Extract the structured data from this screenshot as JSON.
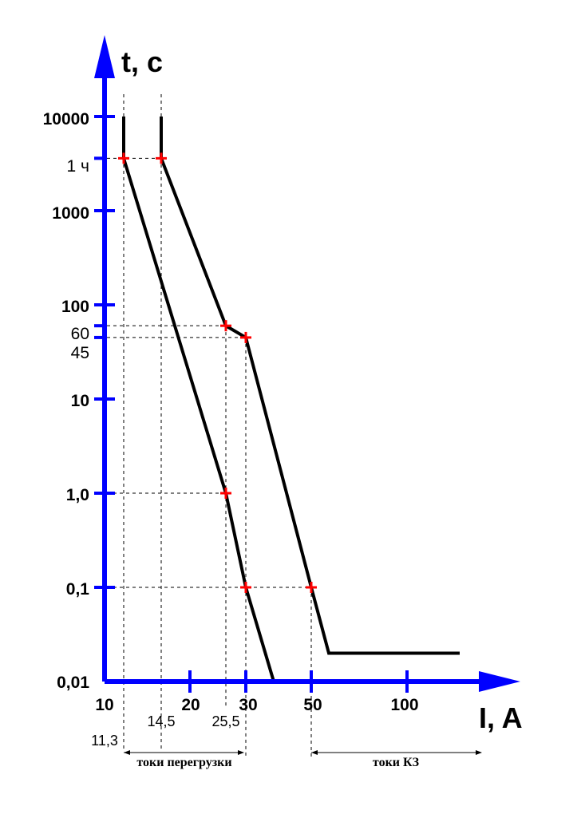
{
  "chart_data": {
    "type": "line",
    "ylabel": "t, c",
    "xlabel": "I, A",
    "y_scale": "log",
    "y_ticks": [
      "10000",
      "1 ч",
      "1000",
      "100",
      "60",
      "45",
      "10",
      "1,0",
      "0,1",
      "0,01"
    ],
    "x_ticks": [
      "10",
      "20",
      "30",
      "50",
      "100"
    ],
    "x_marks": [
      "11,3",
      "14,5",
      "25,5"
    ],
    "series": [
      {
        "points": [
          [
            11.3,
            10000
          ],
          [
            11.3,
            3600
          ],
          [
            25.5,
            1.0
          ],
          [
            30,
            0.1
          ],
          [
            35,
            0.01
          ],
          [
            150,
            0.01
          ]
        ]
      },
      {
        "points": [
          [
            14.5,
            10000
          ],
          [
            14.5,
            3600
          ],
          [
            25.5,
            60
          ],
          [
            30,
            45
          ],
          [
            50,
            0.1
          ],
          [
            55,
            0.02
          ],
          [
            150,
            0.02
          ]
        ]
      }
    ],
    "markers": [
      [
        11.3,
        3600
      ],
      [
        14.5,
        3600
      ],
      [
        25.5,
        60
      ],
      [
        30,
        45
      ],
      [
        25.5,
        1.0
      ],
      [
        30,
        0.1
      ],
      [
        50,
        0.1
      ]
    ],
    "annotations": [
      "токи перегрузки",
      "токи КЗ"
    ]
  }
}
